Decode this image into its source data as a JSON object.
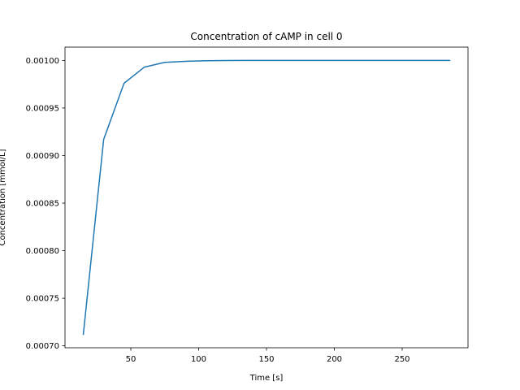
{
  "chart_data": {
    "type": "line",
    "title": "Concentration of cAMP in cell 0",
    "xlabel": "Time [s]",
    "ylabel": "Concentration [mmol/L]",
    "xlim": [
      1.5,
      298.5
    ],
    "ylim": [
      0.000698,
      0.001014
    ],
    "xticks": [
      {
        "value": 50,
        "label": "50"
      },
      {
        "value": 100,
        "label": "100"
      },
      {
        "value": 150,
        "label": "150"
      },
      {
        "value": 200,
        "label": "200"
      },
      {
        "value": 250,
        "label": "250"
      }
    ],
    "yticks": [
      {
        "value": 0.0007,
        "label": "0.00070"
      },
      {
        "value": 0.00075,
        "label": "0.00075"
      },
      {
        "value": 0.0008,
        "label": "0.00080"
      },
      {
        "value": 0.00085,
        "label": "0.00085"
      },
      {
        "value": 0.0009,
        "label": "0.00090"
      },
      {
        "value": 0.00095,
        "label": "0.00095"
      },
      {
        "value": 0.001,
        "label": "0.00100"
      }
    ],
    "grid": false,
    "legend": null,
    "series": [
      {
        "color": "#1f77b4",
        "x": [
          15,
          30,
          45,
          60,
          75,
          90,
          105,
          120,
          135,
          150,
          165,
          180,
          195,
          210,
          225,
          240,
          255,
          270,
          285
        ],
        "y": [
          0.000712,
          0.000917,
          0.000976,
          0.000993,
          0.000998,
          0.000999,
          0.0009997,
          0.0009999,
          0.001,
          0.001,
          0.001,
          0.001,
          0.001,
          0.001,
          0.001,
          0.001,
          0.001,
          0.001,
          0.001
        ]
      }
    ]
  }
}
